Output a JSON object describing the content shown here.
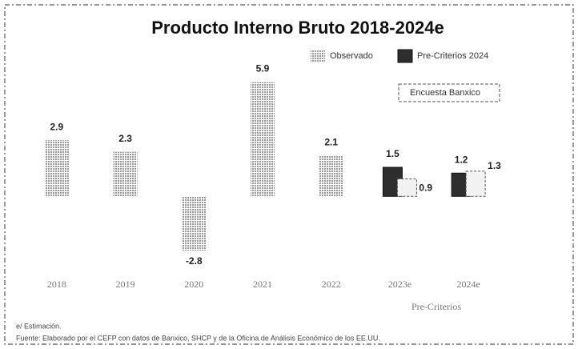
{
  "chart_data": {
    "type": "bar",
    "title": "Producto Interno Bruto 2018-2024e",
    "categories": [
      "2018",
      "2019",
      "2020",
      "2021",
      "2022",
      "2023e",
      "2024e"
    ],
    "series": [
      {
        "name": "Observado",
        "color": "#a8a8a8",
        "values": [
          2.9,
          2.3,
          -2.8,
          5.9,
          2.1,
          null,
          null
        ]
      },
      {
        "name": "Pre-Criterios 2024",
        "color": "#2e2e2e",
        "values": [
          null,
          null,
          null,
          null,
          null,
          1.5,
          1.2
        ]
      },
      {
        "name": "Encuesta Banxico",
        "color": "#f2f2f2",
        "values": [
          null,
          null,
          null,
          null,
          null,
          0.9,
          1.3
        ]
      }
    ],
    "ylim": [
      -3.5,
      6.5
    ],
    "annotation": "Pre-Criterios",
    "footnote": "e/ Estimación.",
    "source": "Fuente: Elaborado por el CEFP con datos de Banxico, SHCP y de la Oficina de Análisis Económico de los EE.UU."
  }
}
